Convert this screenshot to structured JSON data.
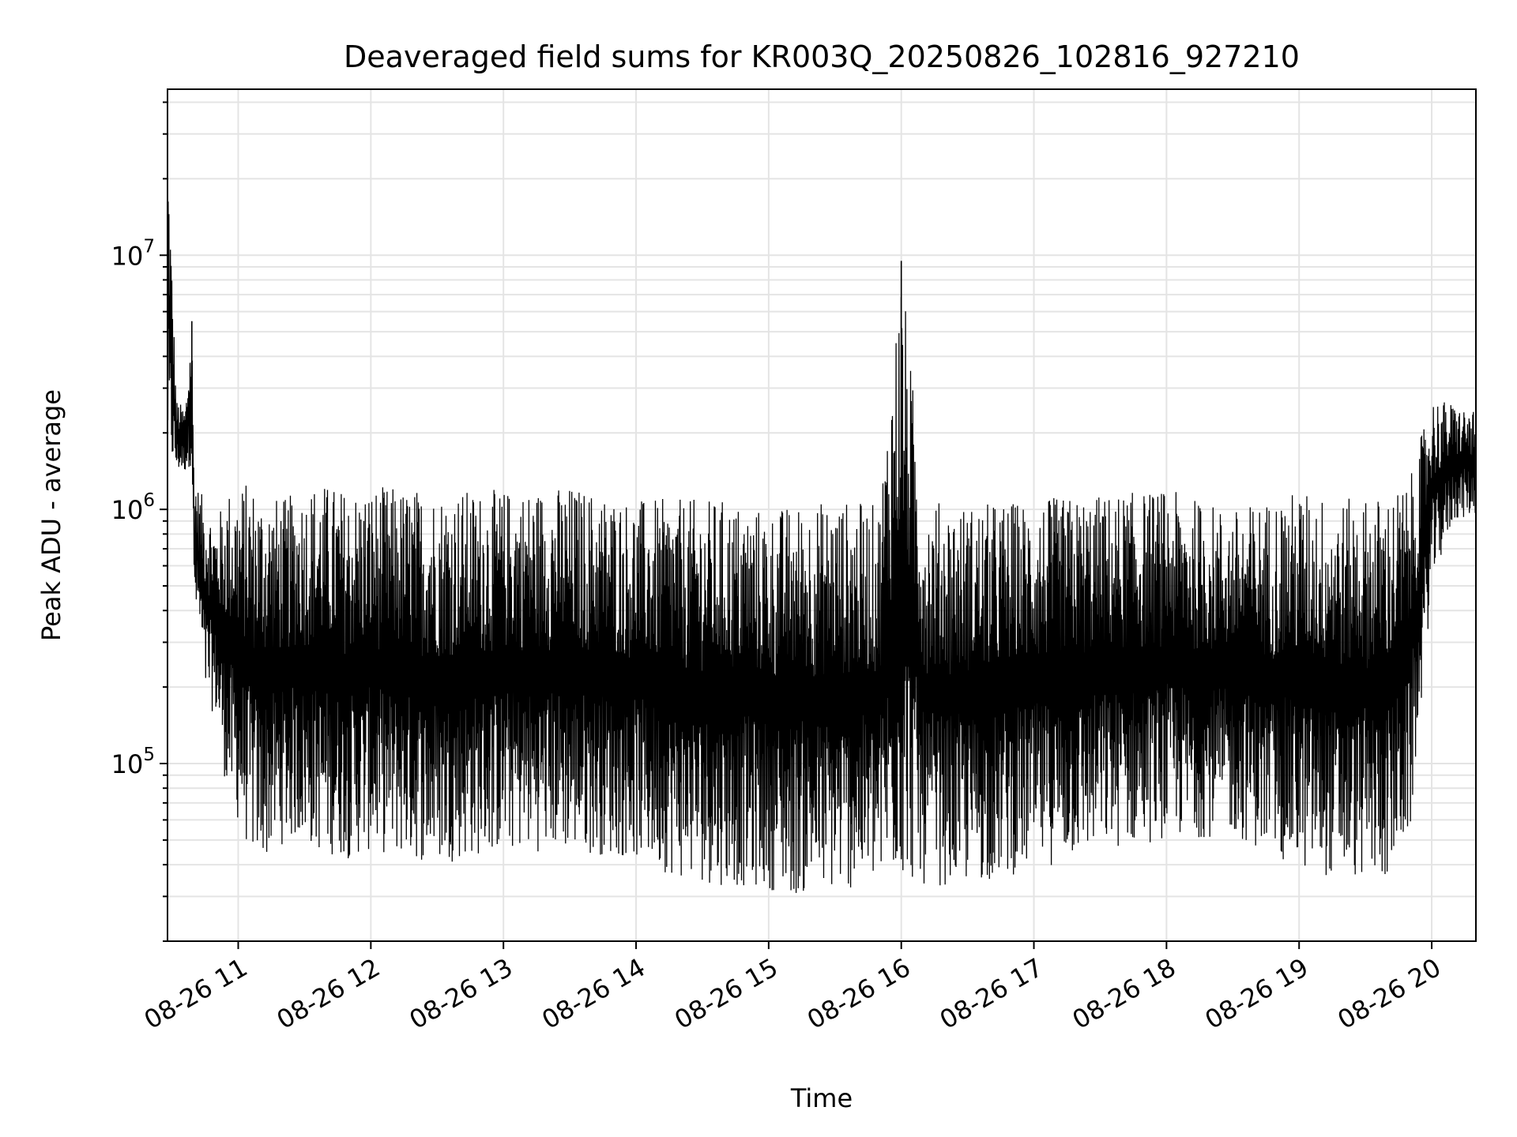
{
  "chart_data": {
    "type": "line",
    "title": "Deaveraged field sums for KR003Q_20250826_102816_927210",
    "xlabel": "Time",
    "ylabel": "Peak ADU - average",
    "yscale": "log",
    "ylim": [
      20000,
      45000000
    ],
    "xlim": [
      "2025-08-26 10:28",
      "2025-08-26 20:20"
    ],
    "grid": true,
    "line_color": "#000000",
    "x_ticks": [
      {
        "value": "2025-08-26 11:00",
        "label": "08-26 11"
      },
      {
        "value": "2025-08-26 12:00",
        "label": "08-26 12"
      },
      {
        "value": "2025-08-26 13:00",
        "label": "08-26 13"
      },
      {
        "value": "2025-08-26 14:00",
        "label": "08-26 14"
      },
      {
        "value": "2025-08-26 15:00",
        "label": "08-26 15"
      },
      {
        "value": "2025-08-26 16:00",
        "label": "08-26 16"
      },
      {
        "value": "2025-08-26 17:00",
        "label": "08-26 17"
      },
      {
        "value": "2025-08-26 18:00",
        "label": "08-26 18"
      },
      {
        "value": "2025-08-26 19:00",
        "label": "08-26 19"
      },
      {
        "value": "2025-08-26 20:00",
        "label": "08-26 20"
      }
    ],
    "y_ticks": [
      {
        "value": 100000,
        "base": "10",
        "exp": "5"
      },
      {
        "value": 1000000,
        "base": "10",
        "exp": "6"
      },
      {
        "value": 10000000,
        "base": "10",
        "exp": "7"
      }
    ],
    "series": [
      {
        "x": [
          "2025-08-26 10:28",
          "2025-08-26 10:32",
          "2025-08-26 10:36",
          "2025-08-26 10:39",
          "2025-08-26 10:40",
          "2025-08-26 10:42",
          "2025-08-26 10:45",
          "2025-08-26 10:50",
          "2025-08-26 10:55",
          "2025-08-26 11:05",
          "2025-08-26 11:10",
          "2025-08-26 11:20",
          "2025-08-26 11:28",
          "2025-08-26 11:35",
          "2025-08-26 11:50",
          "2025-08-26 12:00",
          "2025-08-26 12:30",
          "2025-08-26 13:00",
          "2025-08-26 13:30",
          "2025-08-26 14:00",
          "2025-08-26 14:20",
          "2025-08-26 14:40",
          "2025-08-26 15:00",
          "2025-08-26 15:10",
          "2025-08-26 15:30",
          "2025-08-26 15:50",
          "2025-08-26 16:00",
          "2025-08-26 16:10",
          "2025-08-26 16:30",
          "2025-08-26 17:00",
          "2025-08-26 17:30",
          "2025-08-26 18:00",
          "2025-08-26 18:30",
          "2025-08-26 19:00",
          "2025-08-26 19:20",
          "2025-08-26 19:40",
          "2025-08-26 19:50",
          "2025-08-26 20:00",
          "2025-08-26 20:10",
          "2025-08-26 20:20"
        ],
        "upper": [
          32000000,
          2700000,
          2500000,
          5500000,
          1500000,
          1200000,
          1100000,
          900000,
          1200000,
          1300000,
          1200000,
          1100000,
          1200000,
          1300000,
          1200000,
          1250000,
          1200000,
          1200000,
          1250000,
          1100000,
          1100000,
          1100000,
          1000000,
          1050000,
          1100000,
          1050000,
          9500000,
          1100000,
          1050000,
          1100000,
          1150000,
          1200000,
          1000000,
          1200000,
          1100000,
          1150000,
          1300000,
          2800000,
          2600000,
          2400000
        ],
        "lower": [
          1500000,
          1400000,
          1400000,
          1500000,
          400000,
          350000,
          180000,
          150000,
          75000,
          45000,
          40000,
          48000,
          50000,
          45000,
          42000,
          45000,
          40000,
          45000,
          45000,
          42000,
          35000,
          33000,
          32000,
          30000,
          31000,
          33000,
          35000,
          33000,
          33000,
          38000,
          45000,
          50000,
          52000,
          38000,
          35000,
          35000,
          50000,
          500000,
          900000,
          950000
        ]
      }
    ]
  }
}
